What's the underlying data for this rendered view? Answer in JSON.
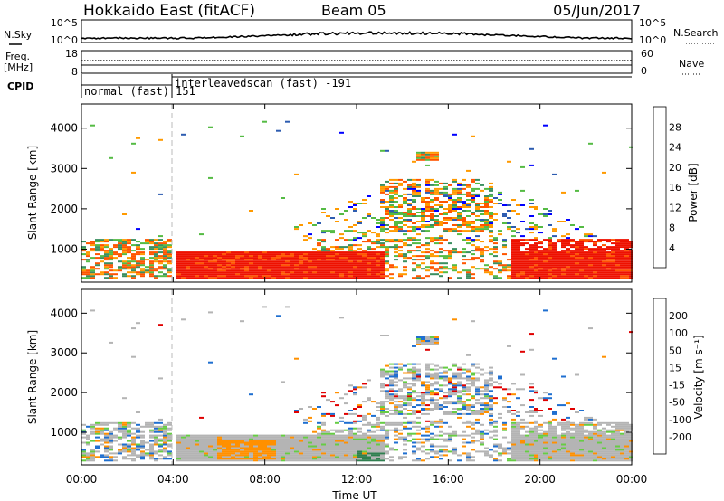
{
  "header": {
    "station": "Hokkaido East (fitACF)",
    "beam": "Beam 05",
    "date": "05/Jun/2017"
  },
  "status_panels": {
    "nsky_label": "N.Sky",
    "nsearch_label": "N.Search",
    "noise_ticks_left": [
      "10^5",
      "10^0"
    ],
    "noise_ticks_right": [
      "10^5",
      "10^0"
    ],
    "freq_label_line1": "Freq.",
    "freq_label_line2": "[MHz]",
    "freq_ticks": [
      "18",
      "8"
    ],
    "nave_label": "Nave",
    "nave_ticks": [
      "60",
      "0"
    ],
    "cpid_label": "CPID",
    "cpid_modes": [
      {
        "label": "normal (fast) 151",
        "start_hour": 0
      },
      {
        "label": "interleavedscan (fast) -191",
        "start_hour": 4
      }
    ]
  },
  "chart_data": [
    {
      "type": "heatmap",
      "panel": "power",
      "ylabel": "Slant Range [km]",
      "xlabel": "",
      "ylim": [
        180,
        4600
      ],
      "yticks": [
        "1000",
        "2000",
        "3000",
        "4000"
      ],
      "colorbar_label": "Power [dB]",
      "colorbar_ticks": [
        "4",
        "8",
        "12",
        "16",
        "20",
        "24",
        "28"
      ],
      "colorbar_colors": [
        "#0000ff",
        "#2d5cb0",
        "#3a8f60",
        "#55bb44",
        "#e6d020",
        "#ff9a00",
        "#ff5500",
        "#ee1100"
      ],
      "grid": false,
      "mode_change_hour": 4
    },
    {
      "type": "heatmap",
      "panel": "velocity",
      "ylabel": "Slant Range [km]",
      "xlabel": "Time UT",
      "ylim": [
        180,
        4600
      ],
      "yticks": [
        "1000",
        "2000",
        "3000",
        "4000"
      ],
      "colorbar_label": "Velocity [m s⁻¹]",
      "colorbar_ticks": [
        "200",
        "100",
        "50",
        "15",
        "-15",
        "-50",
        "-100",
        "-200"
      ],
      "colorbar_colors": [
        "#2020a0",
        "#1f6fd0",
        "#2f7f4f",
        "#66cc44",
        "#b4b4b4",
        "#ffd200",
        "#ff9000",
        "#ff5a00",
        "#e00000"
      ],
      "grid": false,
      "mode_change_hour": 4
    }
  ],
  "time_axis": {
    "label": "Time UT",
    "ticks": [
      "00:00",
      "04:00",
      "08:00",
      "12:00",
      "16:00",
      "20:00",
      "00:00"
    ],
    "xlim_hours": [
      0,
      24
    ]
  }
}
